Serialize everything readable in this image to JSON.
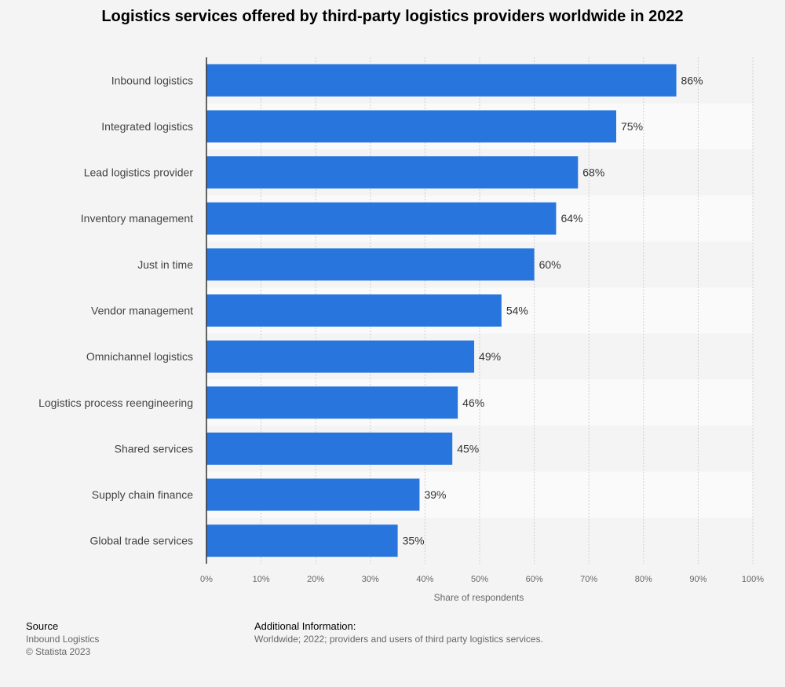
{
  "chart_data": {
    "type": "bar",
    "orientation": "horizontal",
    "title": "Logistics services offered by third-party logistics providers worldwide in 2022",
    "categories": [
      "Inbound logistics",
      "Integrated logistics",
      "Lead logistics provider",
      "Inventory management",
      "Just in time",
      "Vendor management",
      "Omnichannel logistics",
      "Logistics process reengineering",
      "Shared services",
      "Supply chain finance",
      "Global trade services"
    ],
    "values": [
      86,
      75,
      68,
      64,
      60,
      54,
      49,
      46,
      45,
      39,
      35
    ],
    "value_labels": [
      "86%",
      "75%",
      "68%",
      "64%",
      "60%",
      "54%",
      "49%",
      "46%",
      "45%",
      "39%",
      "35%"
    ],
    "xlabel": "Share of respondents",
    "ylabel": "",
    "xlim": [
      0,
      100
    ],
    "xticks": [
      0,
      10,
      20,
      30,
      40,
      50,
      60,
      70,
      80,
      90,
      100
    ],
    "xtick_labels": [
      "0%",
      "10%",
      "20%",
      "30%",
      "40%",
      "50%",
      "60%",
      "70%",
      "80%",
      "90%",
      "100%"
    ],
    "grid": true,
    "bar_color": "#2876dd"
  },
  "footer": {
    "source_heading": "Source",
    "source_name": "Inbound Logistics",
    "copyright": "© Statista 2023",
    "info_heading": "Additional Information:",
    "info_text": "Worldwide; 2022; providers and users of third party logistics services."
  }
}
